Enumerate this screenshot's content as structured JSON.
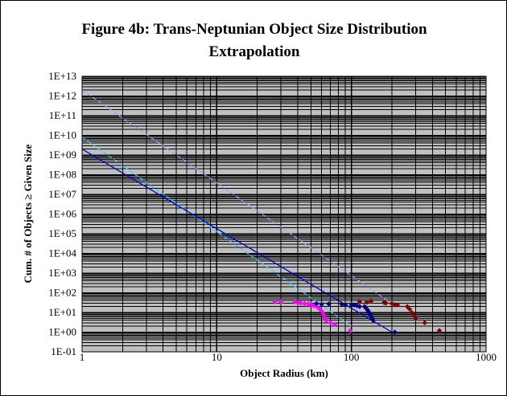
{
  "chart_data": {
    "type": "scatter",
    "title": [
      "Figure 4b:  Trans-Neptunian Object Size Distribution",
      "Extrapolation"
    ],
    "xlabel": "Object Radius (km)",
    "ylabel": "Cum. # of Objects ≥ Given Size",
    "xscale": "log",
    "yscale": "log",
    "xlim": [
      1,
      1000
    ],
    "ylim": [
      0.1,
      10000000000000
    ],
    "x_tick_labels": [
      "1",
      "10",
      "100",
      "1000"
    ],
    "y_tick_labels": [
      "1E-01",
      "1E+00",
      "1E+01",
      "1E+02",
      "1E+03",
      "1E+04",
      "1E+05",
      "1E+06",
      "1E+07",
      "1E+08",
      "1E+09",
      "1E+10",
      "1E+11",
      "1E+12",
      "1E+13"
    ],
    "grid": true,
    "legend": "none",
    "background_color": "#c0c0c0",
    "series": [
      {
        "kind": "line",
        "style": "dashed",
        "color": "#9999ff",
        "x": [
          1,
          200
        ],
        "y": [
          2000000000000,
          28
        ]
      },
      {
        "kind": "line",
        "style": "dashed",
        "color": "#33ccff",
        "x": [
          1,
          100
        ],
        "y": [
          8000000000,
          2
        ]
      },
      {
        "kind": "line",
        "style": "solid",
        "color": "#0000cc",
        "x": [
          1,
          200
        ],
        "y": [
          2000000000,
          1
        ]
      },
      {
        "kind": "points",
        "color": "#ff00ff",
        "x": [
          27,
          30,
          38,
          40,
          42,
          45,
          48,
          50,
          52,
          55,
          58,
          60,
          62,
          63,
          65,
          70,
          75,
          98
        ],
        "y": [
          35,
          35,
          35,
          32,
          30,
          28,
          27,
          25,
          22,
          20,
          15,
          12,
          8,
          5,
          4,
          3,
          2.5,
          1.2
        ]
      },
      {
        "kind": "points",
        "color": "#000080",
        "x": [
          55,
          60,
          68,
          85,
          90,
          100,
          105,
          110,
          115,
          125,
          130,
          133,
          135,
          138,
          140,
          142,
          145,
          210
        ],
        "y": [
          28,
          26,
          27,
          26,
          25,
          25,
          24,
          22,
          20,
          20,
          15,
          12,
          10,
          8,
          6,
          5,
          4,
          1
        ]
      },
      {
        "kind": "points",
        "color": "#800000",
        "x": [
          115,
          130,
          140,
          175,
          180,
          200,
          210,
          220,
          260,
          270,
          280,
          290,
          300,
          350,
          450
        ],
        "y": [
          35,
          33,
          37,
          32,
          30,
          28,
          25,
          24,
          20,
          15,
          10,
          8,
          5,
          3,
          1.2
        ]
      }
    ]
  }
}
